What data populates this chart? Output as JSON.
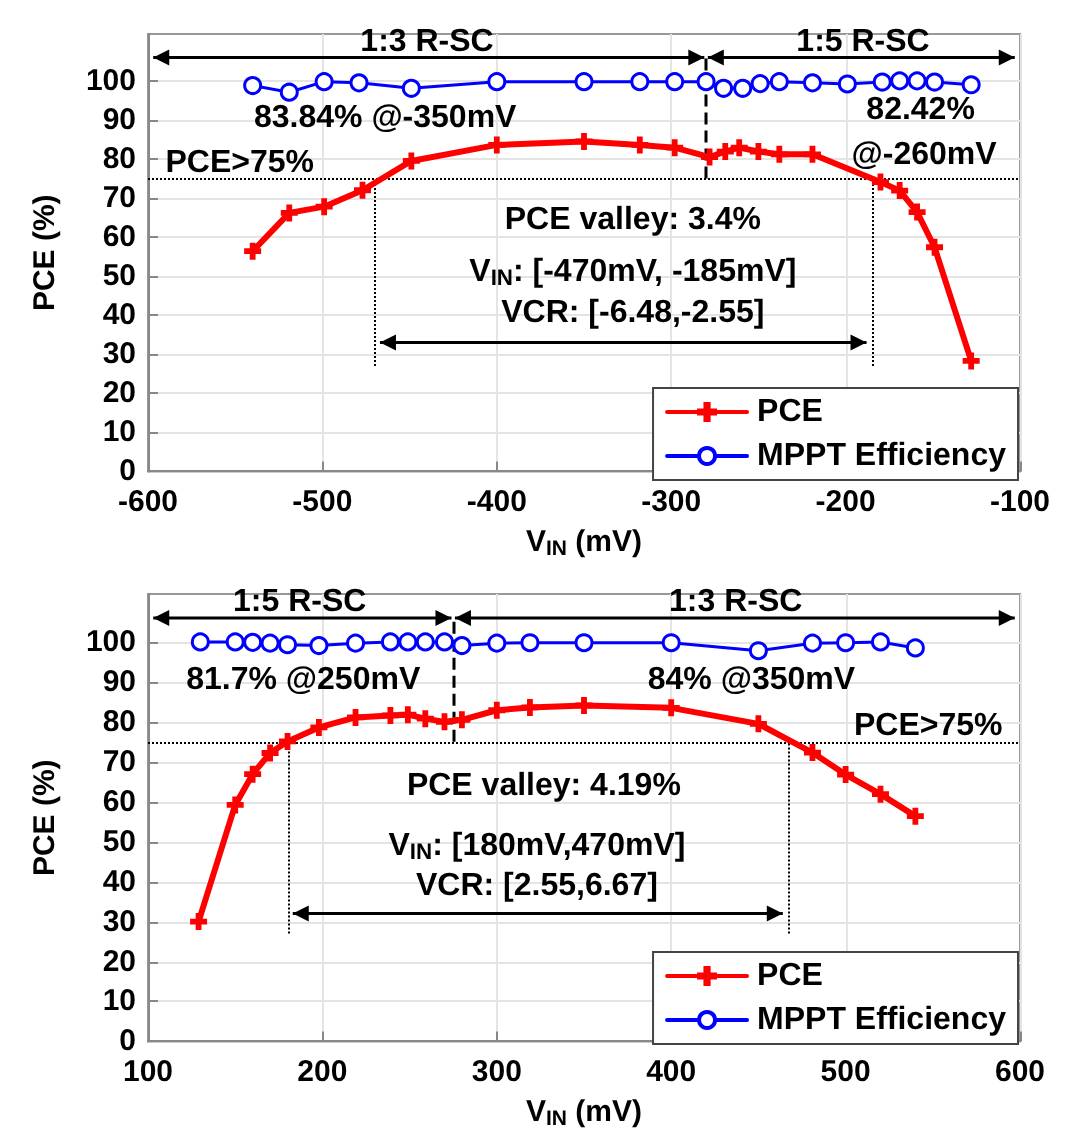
{
  "chart_data": [
    {
      "type": "line",
      "xlabel": "V$_{IN}$ (mV)",
      "ylabel": "PCE (%)",
      "xlim": [
        -600,
        -100
      ],
      "xticks": [
        -600,
        -500,
        -400,
        -300,
        -200,
        -100
      ],
      "ylim": [
        0,
        112
      ],
      "yticks": [
        0,
        10,
        20,
        30,
        40,
        50,
        60,
        70,
        80,
        90,
        100
      ],
      "grid": true,
      "legend": "bottom right",
      "line_style": "solid",
      "series": [
        {
          "name": "PCE",
          "color": "#ff0000",
          "marker": "cross",
          "x": [
            -540,
            -519,
            -499,
            -477,
            -449,
            -400,
            -350,
            -318,
            -298,
            -278,
            -269,
            -261,
            -250,
            -238,
            -219,
            -180,
            -169,
            -159,
            -149,
            -128
          ],
          "values": [
            56.4,
            66.2,
            67.8,
            72,
            79.5,
            83.6,
            84.5,
            83.6,
            82.9,
            80.5,
            81.9,
            82.9,
            81.9,
            81.2,
            81.2,
            74.1,
            71.9,
            66.4,
            57.4,
            28.3
          ]
        },
        {
          "name": "MPPT Efficiency",
          "color": "#0000ff",
          "marker": "circle",
          "x": [
            -540,
            -519,
            -499,
            -479,
            -449,
            -400,
            -350,
            -318,
            -298,
            -280,
            -270,
            -259,
            -249,
            -238,
            -219,
            -199,
            -179,
            -169,
            -159,
            -149,
            -128
          ],
          "values": [
            98.8,
            97.1,
            99.8,
            99.5,
            98.1,
            99.8,
            99.8,
            99.8,
            99.8,
            99.8,
            98.1,
            98.1,
            99.3,
            99.8,
            99.5,
            99.2,
            99.7,
            100,
            100,
            99.7,
            99
          ]
        }
      ],
      "ref_lines": [
        {
          "axis": "x",
          "value": -280,
          "line_style": "dashed"
        },
        {
          "axis": "y",
          "value": 75,
          "label": "PCE>75%",
          "line_style": "dotted"
        },
        {
          "axis": "x",
          "value": -470,
          "line_style": "dotted"
        },
        {
          "axis": "x",
          "value": -185,
          "line_style": "dotted"
        }
      ],
      "annotations": [
        "83.84% @-350mV",
        "82.42%",
        "@-260mV",
        "PCE valley: 3.4%",
        "V$_{IN}$: [-470mV, -185mV]",
        "VCR: [-6.48,-2.55]",
        "1:3 R-SC",
        "1:5 R-SC"
      ]
    },
    {
      "type": "line",
      "xlabel": "V$_{IN}$ (mV)",
      "ylabel": "PCE (%)",
      "xlim": [
        100,
        600
      ],
      "xticks": [
        100,
        200,
        300,
        400,
        500,
        600
      ],
      "ylim": [
        0,
        112
      ],
      "yticks": [
        0,
        10,
        20,
        30,
        40,
        50,
        60,
        70,
        80,
        90,
        100
      ],
      "grid": true,
      "legend": "bottom right",
      "line_style": "solid",
      "series": [
        {
          "name": "PCE",
          "color": "#ff0000",
          "marker": "cross",
          "x": [
            129,
            150,
            160,
            170,
            180,
            198,
            219,
            239,
            249,
            259,
            270,
            280,
            300,
            319,
            350,
            400,
            450,
            481,
            500,
            520,
            540
          ],
          "values": [
            30,
            59.2,
            66.9,
            72.2,
            75.1,
            78.6,
            81.1,
            81.6,
            81.8,
            80.8,
            80,
            80.5,
            82.9,
            83.6,
            84.1,
            83.5,
            79.5,
            72.3,
            66.8,
            61.9,
            56.4
          ]
        },
        {
          "name": "MPPT Efficiency",
          "color": "#0000ff",
          "marker": "circle",
          "x": [
            130,
            150,
            160,
            170,
            180,
            198,
            219,
            239,
            249,
            259,
            270,
            280,
            300,
            319,
            350,
            400,
            450,
            481,
            500,
            520,
            540
          ],
          "values": [
            100,
            100,
            99.9,
            99.7,
            99.3,
            99.1,
            99.7,
            100,
            100,
            100,
            100,
            99.1,
            99.7,
            99.8,
            99.8,
            99.8,
            97.8,
            99.7,
            99.8,
            100,
            98.5
          ]
        }
      ],
      "ref_lines": [
        {
          "axis": "x",
          "value": 275,
          "line_style": "dashed"
        },
        {
          "axis": "y",
          "value": 75,
          "label": "PCE>75%",
          "line_style": "dotted"
        },
        {
          "axis": "x",
          "value": 180,
          "line_style": "dotted"
        },
        {
          "axis": "x",
          "value": 467,
          "line_style": "dotted"
        }
      ],
      "annotations": [
        "81.7% @250mV",
        "84% @350mV",
        "PCE valley: 4.19%",
        "V$_{IN}$: [180mV,470mV]",
        "VCR: [2.55,6.67]",
        "1:5 R-SC",
        "1:3 R-SC"
      ]
    }
  ]
}
